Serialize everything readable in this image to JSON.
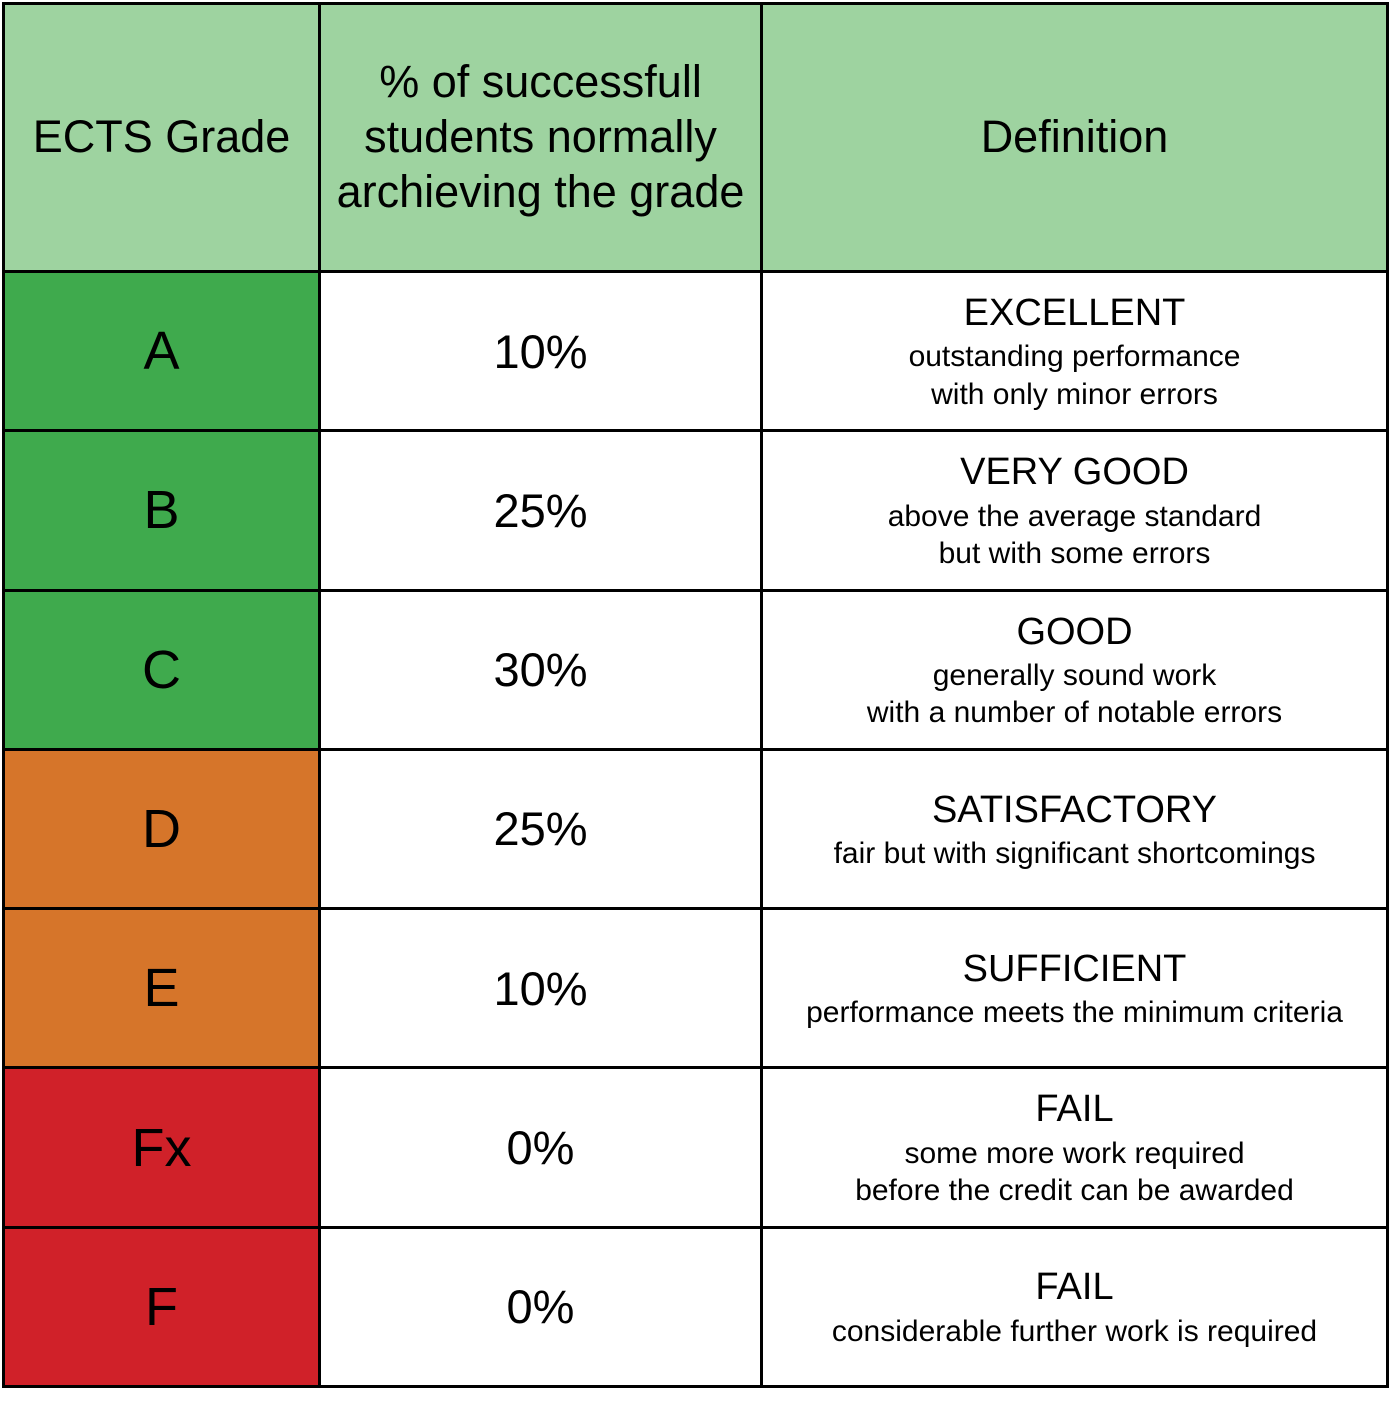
{
  "colors": {
    "header_bg": "#9ed3a0",
    "pass_green": "#3faa4d",
    "mid_orange": "#d6752a",
    "fail_red": "#d02129",
    "border_black": "#000000",
    "cell_white": "#ffffff"
  },
  "table": {
    "headers": [
      "ECTS Grade",
      "% of successfull\nstudents normally\narchieving the grade",
      "Definition"
    ],
    "rows": [
      {
        "grade": "A",
        "percent": "10%",
        "definition_title": "EXCELLENT",
        "definition_desc": "outstanding performance\nwith only minor errors",
        "color": "#3faa4d"
      },
      {
        "grade": "B",
        "percent": "25%",
        "definition_title": "VERY GOOD",
        "definition_desc": "above the average standard\nbut with some errors",
        "color": "#3faa4d"
      },
      {
        "grade": "C",
        "percent": "30%",
        "definition_title": "GOOD",
        "definition_desc": "generally sound work\nwith a number of notable errors",
        "color": "#3faa4d"
      },
      {
        "grade": "D",
        "percent": "25%",
        "definition_title": "SATISFACTORY",
        "definition_desc": "fair but with significant shortcomings",
        "color": "#d6752a"
      },
      {
        "grade": "E",
        "percent": "10%",
        "definition_title": "SUFFICIENT",
        "definition_desc": "performance meets the minimum criteria",
        "color": "#d6752a"
      },
      {
        "grade": "Fx",
        "percent": "0%",
        "definition_title": "FAIL",
        "definition_desc": "some more work required\nbefore the credit can be awarded",
        "color": "#d02129"
      },
      {
        "grade": "F",
        "percent": "0%",
        "definition_title": "FAIL",
        "definition_desc": "considerable further work is required",
        "color": "#d02129"
      }
    ]
  }
}
